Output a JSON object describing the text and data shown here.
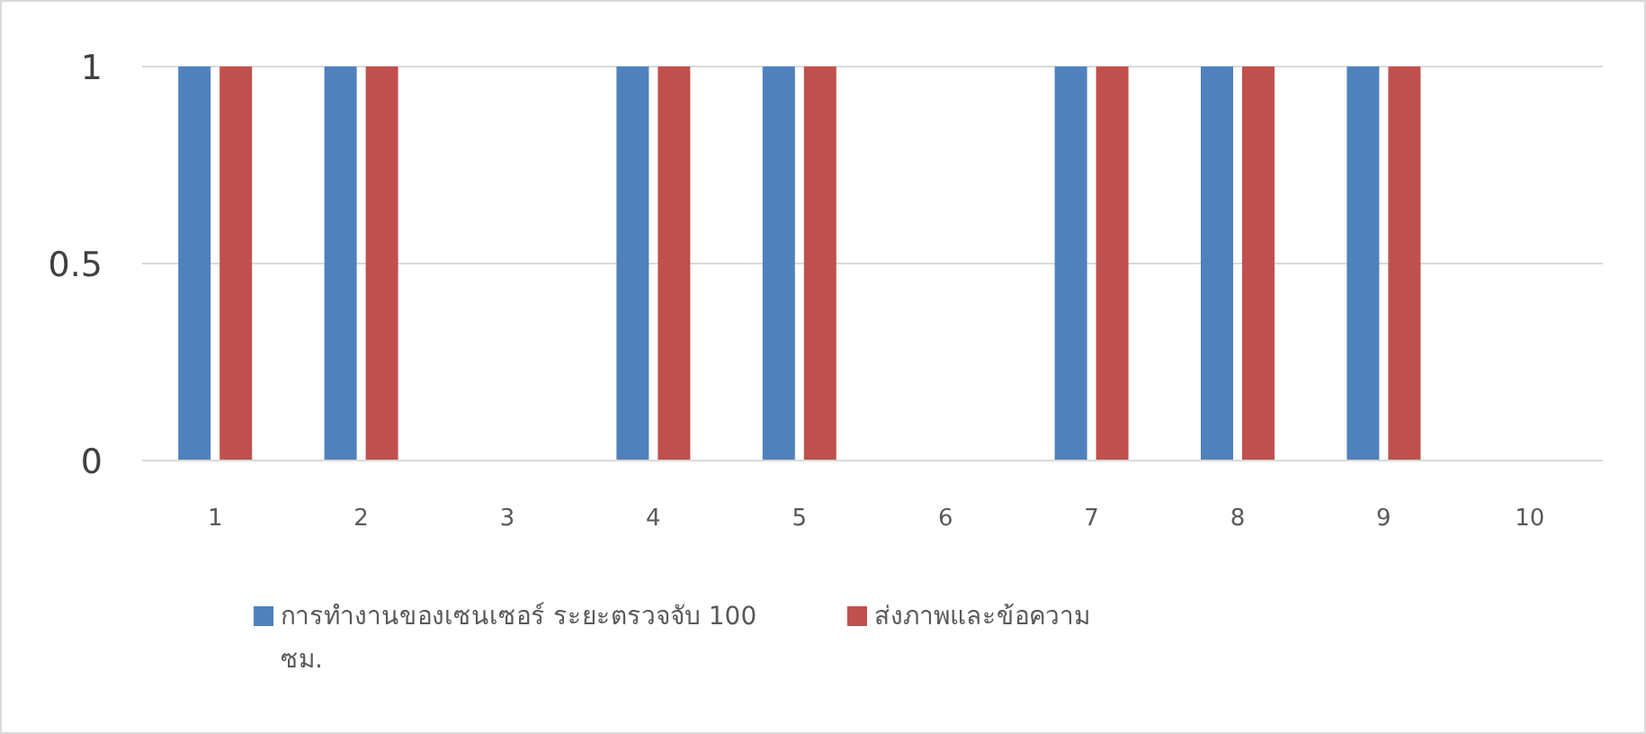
{
  "chart_data": {
    "type": "bar",
    "categories": [
      "1",
      "2",
      "3",
      "4",
      "5",
      "6",
      "7",
      "8",
      "9",
      "10"
    ],
    "series": [
      {
        "name": "การทำงานของเซนเซอร์ ระยะตรวจจับ 100 ซม.",
        "color": "#4f81bd",
        "values": [
          1,
          1,
          0,
          1,
          1,
          0,
          1,
          1,
          1,
          0
        ]
      },
      {
        "name": "ส่งภาพและข้อความ",
        "color": "#c0504d",
        "values": [
          1,
          1,
          0,
          1,
          1,
          0,
          1,
          1,
          1,
          0
        ]
      }
    ],
    "ylim": [
      0,
      1
    ],
    "yticks": [
      0,
      0.5,
      1
    ],
    "grid": "y",
    "legend": "bottom"
  }
}
